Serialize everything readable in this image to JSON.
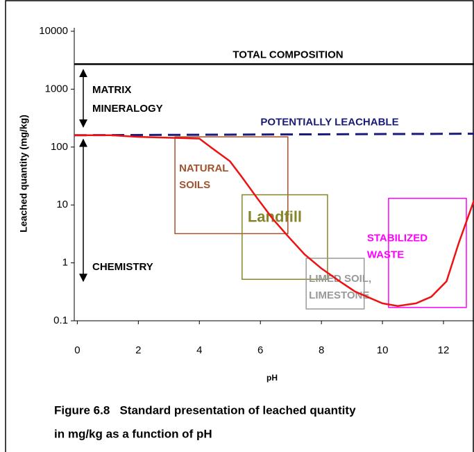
{
  "chart_data": {
    "type": "line",
    "y_label": "Leached quantity (mg/kg)",
    "x_label": "pH",
    "caption_lines": [
      "Figure 6.8   Standard presentation of leached quantity",
      "in mg/kg as a function of pH"
    ],
    "log_y": true,
    "xlim": [
      -0.1,
      13
    ],
    "ylim": [
      0.1,
      10000
    ],
    "xticks": [
      0,
      2,
      4,
      6,
      8,
      10,
      12
    ],
    "yticks": [
      0.1,
      1,
      10,
      100,
      1000,
      10000
    ],
    "series": [
      {
        "name": "TOTAL COMPOSITION",
        "color": "#000000",
        "dashed": false,
        "x": [
          -0.1,
          13
        ],
        "values": [
          2700,
          2700
        ]
      },
      {
        "name": "POTENTIALLY LEACHABLE",
        "color": "#1a1a7a",
        "dashed": true,
        "x": [
          -0.1,
          13
        ],
        "values": [
          160,
          170
        ]
      },
      {
        "color": "#ee1111",
        "dashed": false,
        "x": [
          -0.1,
          1.1,
          2,
          3,
          4,
          4.4,
          5,
          5.4,
          5.9,
          6.4,
          6.9,
          7.45,
          8,
          8.6,
          9.1,
          10,
          10.5,
          11.1,
          11.6,
          12.1,
          12.5,
          13
        ],
        "values": [
          160,
          160,
          150,
          145,
          140,
          97,
          57,
          30,
          13,
          5.8,
          2.9,
          1.4,
          0.8,
          0.48,
          0.32,
          0.2,
          0.18,
          0.2,
          0.26,
          0.48,
          2.2,
          12
        ]
      }
    ],
    "regions": [
      {
        "label_lines": [
          "NATURAL",
          "SOILS"
        ],
        "color": "#a0522d",
        "x": [
          3.2,
          6.9
        ],
        "y": [
          3.2,
          150
        ]
      },
      {
        "label_lines": [
          "Landfill"
        ],
        "color": "#85852a",
        "x": [
          5.4,
          8.2
        ],
        "y": [
          0.52,
          15
        ]
      },
      {
        "label_lines": [
          "LIMED SOIL,",
          "LIMESTONE"
        ],
        "color": "#999999",
        "x": [
          7.5,
          9.4
        ],
        "y": [
          0.16,
          1.2
        ]
      },
      {
        "label_lines": [
          "STABILIZED",
          "WASTE"
        ],
        "color": "#ff00ff",
        "x": [
          10.2,
          12.75
        ],
        "y": [
          0.17,
          13
        ]
      }
    ],
    "annotations": [
      {
        "label_lines": [
          "MATRIX",
          "MINERALOGY"
        ]
      },
      {
        "label_lines": [
          "CHEMISTRY"
        ]
      }
    ]
  }
}
